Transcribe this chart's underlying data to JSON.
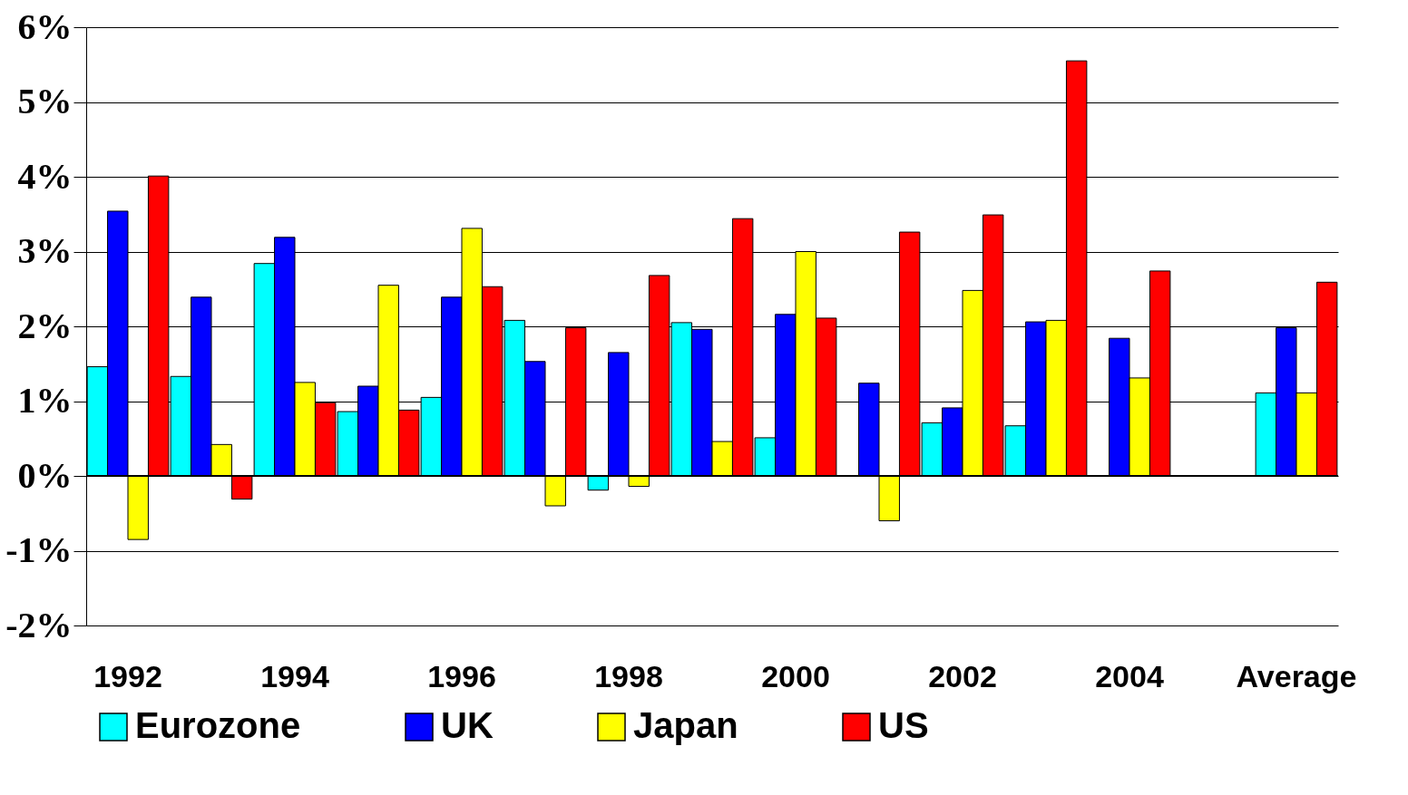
{
  "chart_data": {
    "type": "bar",
    "categories": [
      "1992",
      null,
      "1994",
      null,
      "1996",
      null,
      "1998",
      null,
      "2000",
      null,
      "2002",
      null,
      "2004",
      null,
      "Average"
    ],
    "series": [
      {
        "name": "Eurozone",
        "color": "#00ffff",
        "values": [
          1.46,
          1.33,
          2.84,
          0.86,
          1.05,
          2.08,
          -0.19,
          2.05,
          0.51,
          null,
          0.71,
          0.67,
          null,
          null,
          1.11
        ]
      },
      {
        "name": "UK",
        "color": "#0000ff",
        "values": [
          3.54,
          2.39,
          3.19,
          1.2,
          2.39,
          1.53,
          1.65,
          1.96,
          2.16,
          1.24,
          0.91,
          2.06,
          1.84,
          null,
          1.98
        ]
      },
      {
        "name": "Japan",
        "color": "#ffff00",
        "values": [
          -0.85,
          0.42,
          1.25,
          2.55,
          3.31,
          -0.4,
          -0.14,
          0.46,
          3.0,
          -0.6,
          2.48,
          2.08,
          1.31,
          null,
          1.11
        ]
      },
      {
        "name": "US",
        "color": "#ff0000",
        "values": [
          4.01,
          -0.31,
          0.98,
          0.88,
          2.53,
          1.98,
          2.68,
          3.44,
          2.11,
          3.26,
          3.49,
          5.55,
          2.74,
          null,
          2.59
        ]
      }
    ],
    "ylim": [
      -2,
      6
    ],
    "yticks": [
      {
        "value": -2,
        "label": "-2%"
      },
      {
        "value": -1,
        "label": "-1%"
      },
      {
        "value": 0,
        "label": "0%"
      },
      {
        "value": 1,
        "label": "1%"
      },
      {
        "value": 2,
        "label": "2%"
      },
      {
        "value": 3,
        "label": "3%"
      },
      {
        "value": 4,
        "label": "4%"
      },
      {
        "value": 5,
        "label": "5%"
      },
      {
        "value": 6,
        "label": "6%"
      }
    ],
    "grid": "y",
    "legend": "bottom"
  }
}
